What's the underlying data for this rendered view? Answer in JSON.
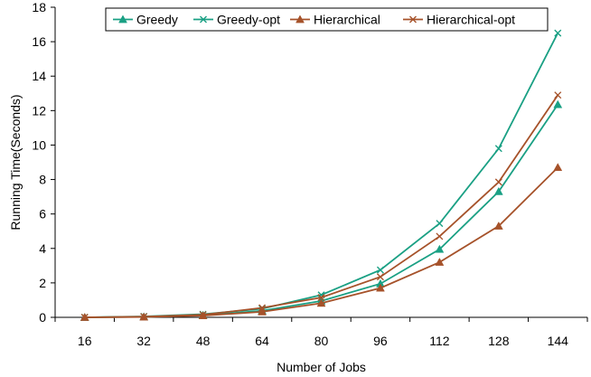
{
  "chart_data": {
    "type": "line",
    "title": "",
    "xlabel": "Number of Jobs",
    "ylabel": "Running Time(Seconds)",
    "categories": [
      "16",
      "32",
      "48",
      "64",
      "80",
      "96",
      "112",
      "128",
      "144"
    ],
    "ylim": [
      0,
      18
    ],
    "yticks": [
      0,
      2,
      4,
      6,
      8,
      10,
      12,
      14,
      16,
      18
    ],
    "grid": false,
    "legend_position": "top-right",
    "series": [
      {
        "name": "Greedy",
        "color": "#1aa084",
        "marker": "triangle",
        "values": [
          0.0,
          0.03,
          0.12,
          0.38,
          0.95,
          1.95,
          3.95,
          7.3,
          12.35
        ]
      },
      {
        "name": "Greedy-opt",
        "color": "#1aa084",
        "marker": "x",
        "values": [
          0.0,
          0.05,
          0.18,
          0.5,
          1.3,
          2.75,
          5.45,
          9.8,
          16.5
        ]
      },
      {
        "name": "Hierarchical",
        "color": "#a6522a",
        "marker": "triangle",
        "values": [
          0.0,
          0.02,
          0.1,
          0.32,
          0.82,
          1.7,
          3.2,
          5.3,
          8.7
        ]
      },
      {
        "name": "Hierarchical-opt",
        "color": "#a6522a",
        "marker": "x",
        "values": [
          0.0,
          0.04,
          0.15,
          0.55,
          1.15,
          2.35,
          4.7,
          7.85,
          12.9
        ]
      }
    ]
  }
}
